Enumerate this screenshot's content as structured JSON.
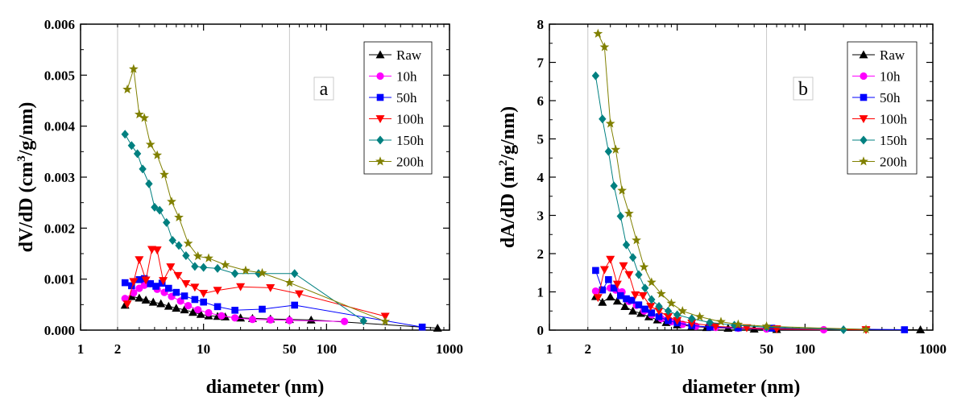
{
  "chart_data": [
    {
      "type": "line",
      "panel_label": "a",
      "xlabel": "diameter (nm)",
      "ylabel_parts": [
        "dV/dD (cm",
        "3",
        "/g/nm)"
      ],
      "xscale": "log",
      "xlim": [
        1,
        1000
      ],
      "ylim": [
        0,
        0.006
      ],
      "x_ticks": [
        {
          "value": 1,
          "label": "1"
        },
        {
          "value": 2,
          "label": "2"
        },
        {
          "value": 10,
          "label": "10"
        },
        {
          "value": 50,
          "label": "50"
        },
        {
          "value": 100,
          "label": "100"
        },
        {
          "value": 1000,
          "label": "1000"
        }
      ],
      "y_ticks": [
        {
          "value": 0,
          "label": "0.000"
        },
        {
          "value": 0.001,
          "label": "0.001"
        },
        {
          "value": 0.002,
          "label": "0.002"
        },
        {
          "value": 0.003,
          "label": "0.003"
        },
        {
          "value": 0.004,
          "label": "0.004"
        },
        {
          "value": 0.005,
          "label": "0.005"
        },
        {
          "value": 0.006,
          "label": "0.006"
        }
      ],
      "reference_lines_x": [
        2,
        50
      ],
      "legend_position": "top-right",
      "series": [
        {
          "name": "Raw",
          "color": "#000000",
          "marker": "triangle-up",
          "x": [
            2.3,
            2.6,
            3.0,
            3.4,
            3.9,
            4.5,
            5.2,
            6.0,
            7.0,
            8.2,
            9.5,
            11,
            13,
            15,
            20,
            25,
            35,
            50,
            75,
            800
          ],
          "y": [
            0.00049,
            0.00066,
            0.00063,
            0.00059,
            0.00055,
            0.00052,
            0.00047,
            0.00043,
            0.0004,
            0.00035,
            0.00031,
            0.00028,
            0.00027,
            0.00026,
            0.00024,
            0.00023,
            0.00022,
            0.00021,
            0.0002,
            4e-05
          ]
        },
        {
          "name": "10h",
          "color": "#ff00ff",
          "marker": "circle",
          "x": [
            2.3,
            2.7,
            3.0,
            3.3,
            3.7,
            4.2,
            4.8,
            5.5,
            6.5,
            7.5,
            9.0,
            11,
            14,
            18,
            25,
            35,
            50,
            140
          ],
          "y": [
            0.00062,
            0.00073,
            0.00082,
            0.00088,
            0.00091,
            0.0008,
            0.00074,
            0.00066,
            0.00057,
            0.00048,
            0.0004,
            0.00034,
            0.00028,
            0.00024,
            0.00021,
            0.0002,
            0.00019,
            0.00017
          ]
        },
        {
          "name": "50h",
          "color": "#0000ff",
          "marker": "square",
          "x": [
            2.3,
            2.6,
            3.0,
            3.3,
            3.7,
            4.1,
            4.6,
            5.2,
            6.0,
            7.0,
            8.5,
            10,
            13,
            18,
            30,
            55,
            600
          ],
          "y": [
            0.00093,
            0.00087,
            0.00099,
            0.00101,
            0.00091,
            0.00086,
            0.00092,
            0.00082,
            0.00074,
            0.00067,
            0.0006,
            0.00055,
            0.00046,
            0.00039,
            0.00041,
            0.00049,
            6e-05
          ]
        },
        {
          "name": "100h",
          "color": "#ff0000",
          "marker": "triangle-down",
          "x": [
            2.4,
            2.7,
            3.0,
            3.4,
            3.8,
            4.2,
            4.7,
            5.4,
            6.2,
            7.2,
            8.5,
            10,
            13,
            20,
            35,
            60,
            300
          ],
          "y": [
            0.00051,
            0.00095,
            0.00138,
            0.00098,
            0.00158,
            0.00157,
            0.00097,
            0.00124,
            0.00107,
            0.00091,
            0.00084,
            0.00072,
            0.00078,
            0.00085,
            0.00083,
            0.00071,
            0.00027
          ]
        },
        {
          "name": "150h",
          "color": "#008080",
          "marker": "diamond",
          "x": [
            2.3,
            2.6,
            2.9,
            3.2,
            3.6,
            4.0,
            4.4,
            5.0,
            5.6,
            6.3,
            7.2,
            8.5,
            10,
            13,
            18,
            28,
            55,
            200
          ],
          "y": [
            0.00384,
            0.00362,
            0.00346,
            0.00316,
            0.00287,
            0.00241,
            0.00235,
            0.00211,
            0.00176,
            0.00166,
            0.00146,
            0.00125,
            0.00123,
            0.00121,
            0.00111,
            0.00111,
            0.00111,
            0.00018
          ]
        },
        {
          "name": "200h",
          "color": "#808000",
          "marker": "star",
          "x": [
            2.4,
            2.7,
            3.0,
            3.3,
            3.7,
            4.2,
            4.8,
            5.5,
            6.3,
            7.5,
            9.0,
            11,
            15,
            22,
            30,
            50,
            300
          ],
          "y": [
            0.00472,
            0.00512,
            0.00423,
            0.00416,
            0.00364,
            0.00343,
            0.00305,
            0.00252,
            0.00221,
            0.0017,
            0.00145,
            0.00141,
            0.00128,
            0.00117,
            0.00112,
            0.00093,
            0.00017
          ]
        }
      ]
    },
    {
      "type": "line",
      "panel_label": "b",
      "xlabel": "diameter (nm)",
      "ylabel_parts": [
        "dA/dD (m",
        "2",
        "/g/nm)"
      ],
      "xscale": "log",
      "xlim": [
        1,
        1000
      ],
      "ylim": [
        0,
        8
      ],
      "x_ticks": [
        {
          "value": 1,
          "label": "1"
        },
        {
          "value": 2,
          "label": "2"
        },
        {
          "value": 10,
          "label": "10"
        },
        {
          "value": 50,
          "label": "50"
        },
        {
          "value": 100,
          "label": "100"
        },
        {
          "value": 1000,
          "label": "1000"
        }
      ],
      "y_ticks": [
        {
          "value": 0,
          "label": "0"
        },
        {
          "value": 1,
          "label": "1"
        },
        {
          "value": 2,
          "label": "2"
        },
        {
          "value": 3,
          "label": "3"
        },
        {
          "value": 4,
          "label": "4"
        },
        {
          "value": 5,
          "label": "5"
        },
        {
          "value": 6,
          "label": "6"
        },
        {
          "value": 7,
          "label": "7"
        },
        {
          "value": 8,
          "label": "8"
        }
      ],
      "reference_lines_x": [
        2,
        50
      ],
      "legend_position": "top-right",
      "series": [
        {
          "name": "Raw",
          "color": "#000000",
          "marker": "triangle-up",
          "x": [
            2.3,
            2.6,
            3.0,
            3.4,
            3.9,
            4.5,
            5.2,
            6.0,
            7.0,
            8.2,
            10,
            13,
            17,
            25,
            40,
            60,
            800
          ],
          "y": [
            0.88,
            0.73,
            0.87,
            0.76,
            0.62,
            0.5,
            0.44,
            0.35,
            0.27,
            0.2,
            0.14,
            0.1,
            0.07,
            0.05,
            0.03,
            0.02,
            0.01
          ]
        },
        {
          "name": "10h",
          "color": "#ff00ff",
          "marker": "circle",
          "x": [
            2.3,
            2.6,
            3.0,
            3.3,
            3.7,
            4.2,
            4.8,
            5.5,
            6.3,
            7.5,
            9,
            11,
            14,
            20,
            30,
            50,
            140
          ],
          "y": [
            1.02,
            1.05,
            1.1,
            1.05,
            1.0,
            0.75,
            0.65,
            0.5,
            0.4,
            0.3,
            0.22,
            0.15,
            0.1,
            0.07,
            0.05,
            0.03,
            0.01
          ]
        },
        {
          "name": "50h",
          "color": "#0000ff",
          "marker": "square",
          "x": [
            2.3,
            2.6,
            2.9,
            3.2,
            3.6,
            4.0,
            4.4,
            5.0,
            5.6,
            6.3,
            7.2,
            8.5,
            10,
            13,
            18,
            30,
            55,
            600
          ],
          "y": [
            1.56,
            1.05,
            1.32,
            1.1,
            0.9,
            0.82,
            0.78,
            0.66,
            0.55,
            0.45,
            0.35,
            0.25,
            0.19,
            0.12,
            0.08,
            0.06,
            0.05,
            0.01
          ]
        },
        {
          "name": "100h",
          "color": "#ff0000",
          "marker": "triangle-down",
          "x": [
            2.4,
            2.7,
            3.0,
            3.4,
            3.8,
            4.2,
            4.7,
            5.4,
            6.2,
            7.2,
            8.5,
            10,
            13,
            20,
            35,
            60,
            300
          ],
          "y": [
            0.85,
            1.58,
            1.85,
            1.2,
            1.68,
            1.45,
            0.92,
            0.9,
            0.62,
            0.5,
            0.35,
            0.25,
            0.18,
            0.1,
            0.06,
            0.03,
            0.01
          ]
        },
        {
          "name": "150h",
          "color": "#008080",
          "marker": "diamond",
          "x": [
            2.3,
            2.6,
            2.9,
            3.2,
            3.6,
            4.0,
            4.5,
            5.0,
            5.6,
            6.3,
            7.2,
            8.5,
            10,
            13,
            18,
            28,
            50,
            200
          ],
          "y": [
            6.65,
            5.52,
            4.67,
            3.77,
            2.98,
            2.23,
            1.9,
            1.45,
            1.1,
            0.8,
            0.62,
            0.5,
            0.4,
            0.3,
            0.2,
            0.13,
            0.08,
            0.01
          ]
        },
        {
          "name": "200h",
          "color": "#808000",
          "marker": "star",
          "x": [
            2.4,
            2.7,
            3.0,
            3.3,
            3.7,
            4.2,
            4.8,
            5.5,
            6.3,
            7.5,
            9,
            11,
            15,
            22,
            30,
            50,
            300
          ],
          "y": [
            7.75,
            7.4,
            5.4,
            4.72,
            3.65,
            3.05,
            2.35,
            1.65,
            1.25,
            0.95,
            0.7,
            0.5,
            0.35,
            0.22,
            0.15,
            0.1,
            0.02
          ]
        }
      ]
    }
  ]
}
